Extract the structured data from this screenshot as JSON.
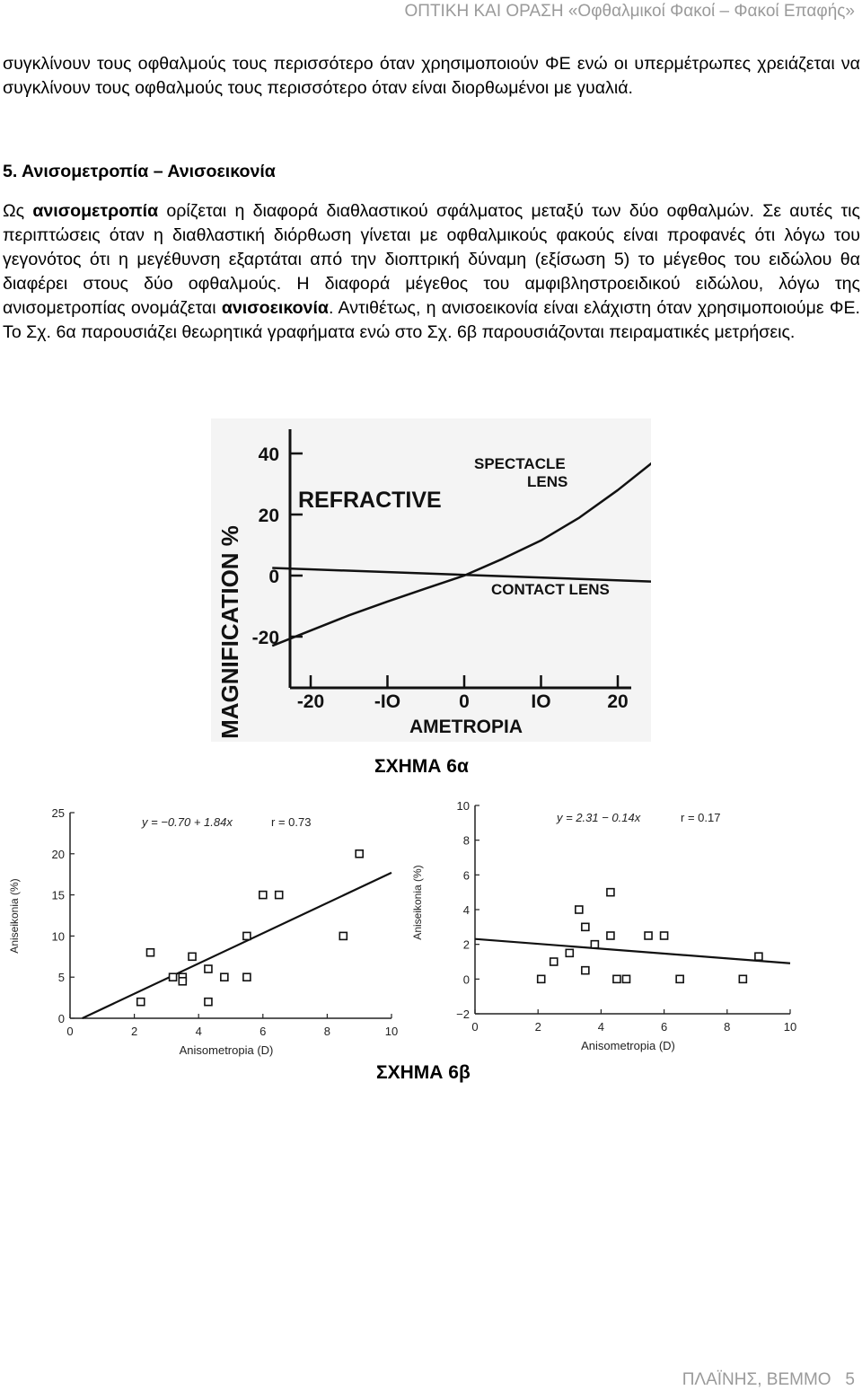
{
  "header": {
    "title": "ΟΠΤΙΚΗ ΚΑΙ ΟΡΑΣΗ «Οφθαλμικοί Φακοί – Φακοί Επαφής»"
  },
  "intro_paragraph": "συγκλίνουν τους οφθαλμούς τους περισσότερο όταν χρησιμοποιούν ΦΕ ενώ οι υπερμέτρωπες χρειάζεται να συγκλίνουν τους οφθαλμούς τους περισσότερο όταν είναι διορθωμένοι με γυαλιά.",
  "section": {
    "title": "5. Ανισομετροπία – Ανισοεικονία",
    "p1_before": "Ως ",
    "p1_term": "ανισομετροπία",
    "p1_after": " ορίζεται η διαφορά διαθλαστικού σφάλματος μεταξύ των δύο οφθαλμών. Σε αυτές τις περιπτώσεις όταν η διαθλαστική διόρθωση γίνεται με οφθαλμικούς φακούς είναι προφανές ότι λόγω του γεγονότος ότι η μεγέθυνση εξαρτάται από την διοπτρική δύναμη (εξίσωση 5) το μέγεθος του ειδώλου θα διαφέρει στους δύο οφθαλμούς. Η διαφορά μέγεθος του αμφιβληστροειδικού ειδώλου, λόγω της ανισομετροπίας ονομάζεται ",
    "p1_term2": "ανισοεικονία",
    "p1_end": ". Αντιθέτως, η ανισοεικονία είναι ελάχιστη όταν χρησιμοποιούμε ΦΕ. Το Σχ. 6α παρουσιάζει θεωρητικά γραφήματα ενώ στο Σχ. 6β παρουσιάζονται πειραματικές μετρήσεις."
  },
  "figure_6a": {
    "caption": "ΣΧΗΜΑ 6α",
    "title": "REFRACTIVE",
    "ylabel": "MAGNIFICATION %",
    "xlabel": "AMETROPIA",
    "label_spectacle_1": "SPECTACLE",
    "label_spectacle_2": "LENS",
    "label_contact": "CONTACT LENS",
    "yticks": [
      "40",
      "20",
      "0",
      "-20"
    ],
    "xticks": [
      "-20",
      "-IO",
      "0",
      "IO",
      "20"
    ],
    "colors": {
      "background": "#f4f4f4",
      "ink": "#111111"
    }
  },
  "figure_6b": {
    "caption": "ΣΧΗΜΑ 6β"
  },
  "chart_data": [
    {
      "type": "line",
      "title": "REFRACTIVE",
      "xlabel": "AMETROPIA",
      "ylabel": "MAGNIFICATION %",
      "xlim": [
        -25,
        25
      ],
      "ylim": [
        -28,
        45
      ],
      "series": [
        {
          "name": "SPECTACLE LENS",
          "x": [
            -25,
            -20,
            -15,
            -10,
            -5,
            0,
            5,
            10,
            15,
            20,
            25
          ],
          "y": [
            -23,
            -18,
            -13,
            -8.5,
            -4.2,
            0,
            5.5,
            11.5,
            19,
            28,
            38
          ]
        },
        {
          "name": "CONTACT LENS",
          "x": [
            -25,
            25
          ],
          "y": [
            2.5,
            -2
          ]
        }
      ],
      "grid": false
    },
    {
      "type": "scatter",
      "xlabel": "Anisometropia (D)",
      "ylabel": "Aniseikonia (%)",
      "equation": "y = −0.70 + 1.84x",
      "r_label": "r = 0.73",
      "xlim": [
        0,
        10
      ],
      "ylim": [
        0,
        25
      ],
      "xticks": [
        "0",
        "2",
        "4",
        "6",
        "8",
        "10"
      ],
      "yticks": [
        "0",
        "5",
        "10",
        "15",
        "20",
        "25"
      ],
      "points": [
        [
          2.2,
          2
        ],
        [
          2.5,
          8
        ],
        [
          3.2,
          5
        ],
        [
          3.5,
          5
        ],
        [
          3.5,
          4.5
        ],
        [
          3.8,
          7.5
        ],
        [
          4.3,
          6
        ],
        [
          4.3,
          2
        ],
        [
          4.8,
          5
        ],
        [
          5.5,
          5
        ],
        [
          5.5,
          10
        ],
        [
          6.0,
          15
        ],
        [
          6.5,
          15
        ],
        [
          8.5,
          10
        ],
        [
          9.0,
          20
        ]
      ],
      "fit": {
        "intercept": -0.7,
        "slope": 1.84
      }
    },
    {
      "type": "scatter",
      "xlabel": "Anisometropia (D)",
      "ylabel": "Aniseikonia (%)",
      "equation": "y = 2.31 − 0.14x",
      "r_label": "r = 0.17",
      "xlim": [
        0,
        10
      ],
      "ylim": [
        -2,
        10
      ],
      "xticks": [
        "0",
        "2",
        "4",
        "6",
        "8",
        "10"
      ],
      "yticks": [
        "−2",
        "0",
        "2",
        "4",
        "6",
        "8",
        "10"
      ],
      "points": [
        [
          2.1,
          0
        ],
        [
          2.5,
          1
        ],
        [
          3.0,
          1.5
        ],
        [
          3.3,
          4
        ],
        [
          3.5,
          3
        ],
        [
          3.5,
          0.5
        ],
        [
          3.8,
          2
        ],
        [
          4.3,
          2.5
        ],
        [
          4.3,
          5
        ],
        [
          4.5,
          0
        ],
        [
          4.8,
          0
        ],
        [
          5.5,
          2.5
        ],
        [
          6.0,
          2.5
        ],
        [
          6.5,
          0
        ],
        [
          8.5,
          0
        ],
        [
          9.0,
          1.3
        ]
      ],
      "fit": {
        "intercept": 2.31,
        "slope": -0.14
      }
    }
  ],
  "footer": {
    "author": "ΠΛΑΪΝΗΣ, ΒΕΜΜΟ",
    "page": "5"
  }
}
